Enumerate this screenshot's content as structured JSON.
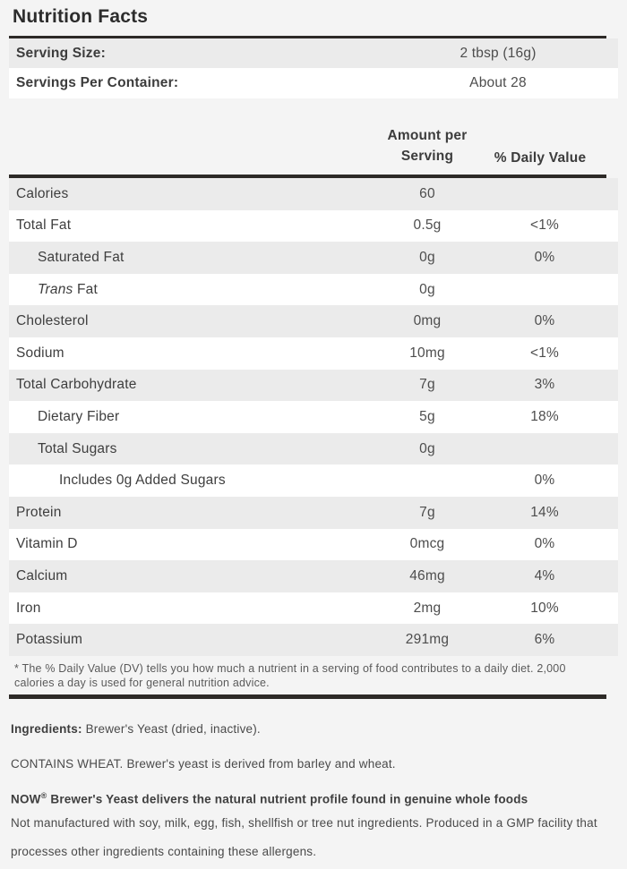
{
  "label": {
    "title": "Nutrition Facts",
    "serving_size": {
      "label": "Serving Size:",
      "value": "2 tbsp (16g)"
    },
    "servings_per_container": {
      "label": "Servings Per Container:",
      "value": "About 28"
    },
    "columns": {
      "amount_line1": "Amount per",
      "amount_line2": "Serving",
      "daily_value": "% Daily Value"
    },
    "nutrients": [
      {
        "name": "Calories",
        "amount": "60",
        "dv": "",
        "indent": 0
      },
      {
        "name": "Total Fat",
        "amount": "0.5g",
        "dv": "<1%",
        "indent": 0
      },
      {
        "name": "Saturated Fat",
        "amount": "0g",
        "dv": "0%",
        "indent": 1
      },
      {
        "name_italic": "Trans",
        "name": " Fat",
        "amount": "0g",
        "dv": "",
        "indent": 1
      },
      {
        "name": "Cholesterol",
        "amount": "0mg",
        "dv": "0%",
        "indent": 0
      },
      {
        "name": "Sodium",
        "amount": "10mg",
        "dv": "<1%",
        "indent": 0
      },
      {
        "name": "Total Carbohydrate",
        "amount": "7g",
        "dv": "3%",
        "indent": 0
      },
      {
        "name": "Dietary Fiber",
        "amount": "5g",
        "dv": "18%",
        "indent": 1
      },
      {
        "name": "Total Sugars",
        "amount": "0g",
        "dv": "",
        "indent": 1
      },
      {
        "name": "Includes 0g Added Sugars",
        "amount": "",
        "dv": "0%",
        "indent": 2
      },
      {
        "name": "Protein",
        "amount": "7g",
        "dv": "14%",
        "indent": 0
      },
      {
        "name": "Vitamin D",
        "amount": "0mcg",
        "dv": "0%",
        "indent": 0
      },
      {
        "name": "Calcium",
        "amount": "46mg",
        "dv": "4%",
        "indent": 0
      },
      {
        "name": "Iron",
        "amount": "2mg",
        "dv": "10%",
        "indent": 0
      },
      {
        "name": "Potassium",
        "amount": "291mg",
        "dv": "6%",
        "indent": 0
      }
    ],
    "footnote_line1": "* The % Daily Value (DV) tells you how much a nutrient in a serving of food contributes to a daily diet. 2,000",
    "footnote_line2": "calories a day is used for general nutrition advice."
  },
  "details": {
    "ingredients_label": "Ingredients:",
    "ingredients_text": " Brewer's Yeast (dried, inactive).",
    "contains": "CONTAINS WHEAT. Brewer's yeast is derived from barley and wheat.",
    "highlight_brand": "NOW",
    "highlight_reg": "®",
    "highlight_rest": " Brewer's Yeast delivers the natural nutrient profile found in genuine whole foods",
    "allergen_note": "Not manufactured with soy, milk, egg, fish, shellfish or tree nut ingredients. Produced in a GMP facility that processes other ingredients containing these allergens."
  },
  "colors": {
    "page_bg": "#f4f4f4",
    "stripe_gray": "#ebebeb",
    "stripe_white": "#ffffff",
    "rule_dark": "#2d2a27",
    "text_dark": "#3e3e3e",
    "text_value": "#4d4d4d"
  }
}
